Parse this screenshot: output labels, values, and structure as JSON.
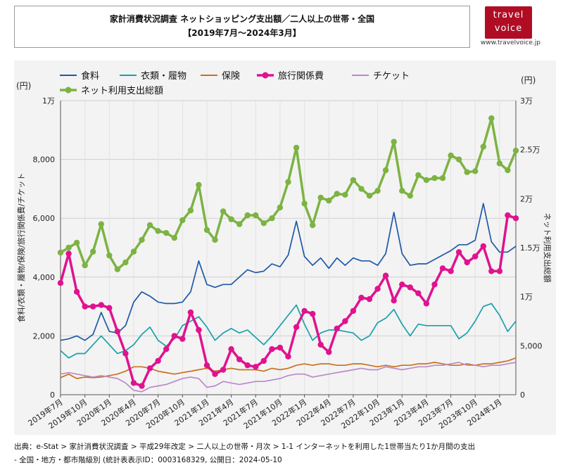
{
  "header": {
    "title_line1": "家計消費状況調査 ネットショッピング支出額／二人以上の世帯・全国",
    "title_line2": "【2019年7月〜2024年3月】"
  },
  "logo": {
    "word1": "travel",
    "word2": "voice",
    "url": "www.travelvoice.jp"
  },
  "source": {
    "line1": "出典：e-Stat > 家計消費状況調査 > 平成29年改定 > 二人以上の世帯・月次 > 1-1 インターネットを利用した1世帯当たり1か月間の支出",
    "line2": "- 全国・地方・都市階級別 (統計表表示ID：0003168329, 公開日：2024-05-10"
  },
  "colors": {
    "food": "#1e5aa6",
    "clothing": "#1aa0aa",
    "insurance": "#cc6f1e",
    "travel": "#e0128f",
    "ticket": "#b98ac9",
    "total": "#7cb342",
    "panel": "#f3f3f3"
  },
  "chart_data": {
    "type": "line",
    "x_tick_labels": [
      "2019年7月",
      "2019年10月",
      "2020年1月",
      "2020年4月",
      "2020年7月",
      "2020年10月",
      "2021年1月",
      "2021年4月",
      "2021年7月",
      "2021年10月",
      "2022年1月",
      "2022年4月",
      "2022年7月",
      "2022年10月",
      "2023年1月",
      "2023年4月",
      "2023年7月",
      "2023年10月",
      "2024年1月"
    ],
    "left_axis": {
      "unit": "(円)",
      "label": "食料/衣類・履物/保険/旅行関係費/チケット",
      "ticks": [
        "0",
        "2,000",
        "4,000",
        "6,000",
        "8,000",
        "1万"
      ],
      "ylim": [
        0,
        10000
      ]
    },
    "right_axis": {
      "unit": "(円)",
      "label": "ネット利用支出総額",
      "ticks": [
        "0",
        "5,000",
        "1万",
        "1.5万",
        "2万",
        "2.5万",
        "3万"
      ],
      "ylim": [
        0,
        30000
      ]
    },
    "legend": [
      "食料",
      "衣類・履物",
      "保険",
      "旅行関係費",
      "チケット",
      "ネット利用支出総額"
    ],
    "legend_position": "top",
    "grid": true,
    "series": [
      {
        "name": "食料",
        "axis": "left",
        "values": [
          1850,
          1900,
          2000,
          1850,
          2050,
          2800,
          2150,
          2100,
          2350,
          3150,
          3500,
          3350,
          3150,
          3100,
          3100,
          3150,
          3500,
          4550,
          3750,
          3650,
          3750,
          3750,
          4000,
          4250,
          4150,
          4200,
          4450,
          4350,
          4750,
          5900,
          4700,
          4400,
          4650,
          4300,
          4650,
          4400,
          4650,
          4550,
          4550,
          4400,
          4800,
          6200,
          4800,
          4400,
          4450,
          4450,
          4600,
          4750,
          4900,
          5100,
          5100,
          5250,
          6500,
          5200,
          4850,
          4850,
          5050
        ]
      },
      {
        "name": "衣類・履物",
        "axis": "left",
        "values": [
          1500,
          1250,
          1400,
          1400,
          1700,
          2000,
          1700,
          1400,
          1500,
          1700,
          2050,
          2300,
          1850,
          1650,
          1900,
          2350,
          2500,
          2650,
          2300,
          1850,
          2100,
          2250,
          2100,
          2200,
          1950,
          1700,
          2000,
          2350,
          2700,
          3050,
          2400,
          1850,
          2100,
          2200,
          2200,
          2150,
          2100,
          1850,
          2000,
          2450,
          2600,
          2900,
          2400,
          2000,
          2400,
          2350,
          2350,
          2350,
          2350,
          1900,
          2100,
          2500,
          3000,
          3100,
          2700,
          2150,
          2500
        ]
      },
      {
        "name": "保険",
        "axis": "left",
        "values": [
          580,
          700,
          550,
          600,
          580,
          600,
          650,
          700,
          800,
          950,
          950,
          900,
          800,
          750,
          700,
          750,
          800,
          850,
          900,
          800,
          850,
          900,
          850,
          850,
          850,
          800,
          900,
          850,
          900,
          1000,
          1050,
          1000,
          1050,
          1050,
          1000,
          1000,
          1050,
          1050,
          1000,
          950,
          1000,
          950,
          1000,
          1000,
          1050,
          1050,
          1100,
          1050,
          1000,
          1000,
          1050,
          1000,
          1050,
          1050,
          1100,
          1150,
          1250
        ]
      },
      {
        "name": "旅行関係費",
        "axis": "left",
        "values": [
          3800,
          4800,
          3500,
          3000,
          3000,
          3050,
          2950,
          2150,
          1400,
          400,
          300,
          900,
          1150,
          1550,
          2000,
          1900,
          2800,
          2200,
          1000,
          700,
          850,
          1550,
          1200,
          1000,
          950,
          1150,
          1550,
          1600,
          1300,
          2300,
          2850,
          2750,
          1700,
          1450,
          2250,
          2500,
          2850,
          3300,
          3250,
          3600,
          4050,
          3200,
          3750,
          3650,
          3450,
          3100,
          3750,
          4300,
          4200,
          4850,
          4500,
          4700,
          5050,
          4200,
          4200,
          6100,
          6000
        ]
      },
      {
        "name": "チケット",
        "axis": "left",
        "values": [
          700,
          750,
          700,
          650,
          600,
          650,
          600,
          550,
          400,
          150,
          100,
          250,
          300,
          350,
          450,
          550,
          600,
          550,
          250,
          300,
          450,
          400,
          350,
          400,
          450,
          450,
          500,
          550,
          650,
          700,
          700,
          600,
          650,
          700,
          750,
          800,
          850,
          900,
          850,
          850,
          950,
          900,
          850,
          900,
          950,
          950,
          1000,
          1000,
          1050,
          1100,
          1000,
          1000,
          950,
          1000,
          1000,
          1050,
          1100
        ]
      },
      {
        "name": "ネット利用支出総額",
        "axis": "right",
        "values": [
          14500,
          15000,
          15500,
          13200,
          14600,
          17400,
          14200,
          12800,
          13500,
          14600,
          15800,
          17300,
          16700,
          16500,
          16000,
          17800,
          18800,
          21400,
          16800,
          15800,
          18700,
          17900,
          17400,
          18300,
          18300,
          17500,
          18000,
          19100,
          21700,
          25200,
          19500,
          17300,
          20100,
          19800,
          20500,
          20400,
          21900,
          21000,
          20300,
          20800,
          22900,
          25800,
          20800,
          20300,
          22400,
          21900,
          22100,
          22100,
          24400,
          24000,
          22700,
          22800,
          25300,
          28200,
          23600,
          22900,
          24900
        ]
      }
    ]
  }
}
